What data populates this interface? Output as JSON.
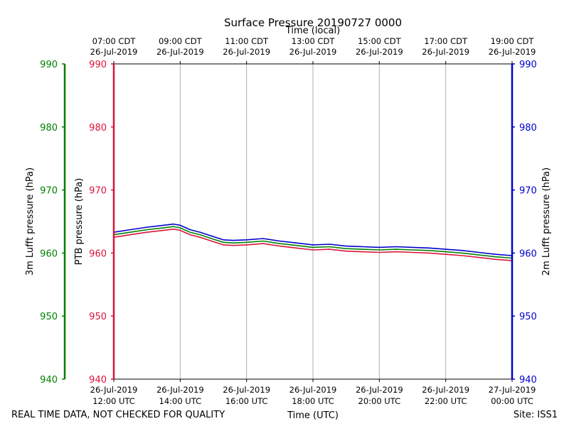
{
  "chart_data": {
    "type": "line",
    "title": "Surface Pressure 20190727 0000",
    "top_axis_label": "Time (local)",
    "bottom_axis_label": "Time (UTC)",
    "footer_left": "REAL TIME DATA, NOT CHECKED FOR QUALITY",
    "footer_right": "Site: ISS1",
    "ylim": [
      940,
      990
    ],
    "y_ticks": [
      940,
      950,
      960,
      970,
      980,
      990
    ],
    "xlim_hours_utc": [
      12,
      24
    ],
    "x_ticks_bottom": [
      {
        "hour": 12,
        "line1": "26-Jul-2019",
        "line2": "12:00 UTC"
      },
      {
        "hour": 14,
        "line1": "26-Jul-2019",
        "line2": "14:00 UTC"
      },
      {
        "hour": 16,
        "line1": "26-Jul-2019",
        "line2": "16:00 UTC"
      },
      {
        "hour": 18,
        "line1": "26-Jul-2019",
        "line2": "18:00 UTC"
      },
      {
        "hour": 20,
        "line1": "26-Jul-2019",
        "line2": "20:00 UTC"
      },
      {
        "hour": 22,
        "line1": "26-Jul-2019",
        "line2": "22:00 UTC"
      },
      {
        "hour": 24,
        "line1": "27-Jul-2019",
        "line2": "00:00 UTC"
      }
    ],
    "x_ticks_top": [
      {
        "hour": 12,
        "line1": "07:00 CDT",
        "line2": "26-Jul-2019"
      },
      {
        "hour": 14,
        "line1": "09:00 CDT",
        "line2": "26-Jul-2019"
      },
      {
        "hour": 16,
        "line1": "11:00 CDT",
        "line2": "26-Jul-2019"
      },
      {
        "hour": 18,
        "line1": "13:00 CDT",
        "line2": "26-Jul-2019"
      },
      {
        "hour": 20,
        "line1": "15:00 CDT",
        "line2": "26-Jul-2019"
      },
      {
        "hour": 22,
        "line1": "17:00 CDT",
        "line2": "26-Jul-2019"
      },
      {
        "hour": 24,
        "line1": "19:00 CDT",
        "line2": "26-Jul-2019"
      }
    ],
    "axes": [
      {
        "id": "lufft3m",
        "label": "3m Lufft pressure (hPa)",
        "color": "#008000"
      },
      {
        "id": "ptb",
        "label": "PTB pressure (hPa)",
        "color": "#dc143c"
      },
      {
        "id": "lufft2m",
        "label": "2m Lufft pressure (hPa)",
        "color": "#0000cd"
      }
    ],
    "series": [
      {
        "name": "PTB pressure",
        "color": "#dc143c",
        "x": [
          12.0,
          12.5,
          13.0,
          13.5,
          13.8,
          14.0,
          14.3,
          14.6,
          15.0,
          15.3,
          15.6,
          16.0,
          16.5,
          17.0,
          17.5,
          18.0,
          18.5,
          19.0,
          19.5,
          20.0,
          20.5,
          21.0,
          21.5,
          22.0,
          22.5,
          23.0,
          23.5,
          24.0
        ],
        "values": [
          962.5,
          962.9,
          963.3,
          963.6,
          963.8,
          963.6,
          962.9,
          962.5,
          961.8,
          961.3,
          961.2,
          961.3,
          961.5,
          961.1,
          960.8,
          960.5,
          960.6,
          960.3,
          960.2,
          960.1,
          960.2,
          960.1,
          960.0,
          959.8,
          959.6,
          959.3,
          959.0,
          958.8
        ]
      },
      {
        "name": "3m Lufft pressure",
        "color": "#008000",
        "x": [
          12.0,
          12.5,
          13.0,
          13.5,
          13.8,
          14.0,
          14.3,
          14.6,
          15.0,
          15.3,
          15.6,
          16.0,
          16.5,
          17.0,
          17.5,
          18.0,
          18.5,
          19.0,
          19.5,
          20.0,
          20.5,
          21.0,
          21.5,
          22.0,
          22.5,
          23.0,
          23.5,
          24.0
        ],
        "values": [
          962.9,
          963.3,
          963.7,
          964.0,
          964.2,
          964.0,
          963.3,
          962.9,
          962.2,
          961.7,
          961.6,
          961.7,
          961.9,
          961.5,
          961.2,
          960.9,
          961.0,
          960.7,
          960.6,
          960.5,
          960.6,
          960.5,
          960.4,
          960.2,
          960.0,
          959.7,
          959.4,
          959.2
        ]
      },
      {
        "name": "2m Lufft pressure",
        "color": "#0000cd",
        "x": [
          12.0,
          12.5,
          13.0,
          13.5,
          13.8,
          14.0,
          14.3,
          14.6,
          15.0,
          15.3,
          15.6,
          16.0,
          16.5,
          17.0,
          17.5,
          18.0,
          18.5,
          19.0,
          19.5,
          20.0,
          20.5,
          21.0,
          21.5,
          22.0,
          22.5,
          23.0,
          23.5,
          24.0
        ],
        "values": [
          963.3,
          963.7,
          964.1,
          964.4,
          964.6,
          964.4,
          963.7,
          963.3,
          962.6,
          962.1,
          962.0,
          962.1,
          962.3,
          961.9,
          961.6,
          961.3,
          961.4,
          961.1,
          961.0,
          960.9,
          961.0,
          960.9,
          960.8,
          960.6,
          960.4,
          960.1,
          959.8,
          959.6
        ]
      }
    ]
  }
}
